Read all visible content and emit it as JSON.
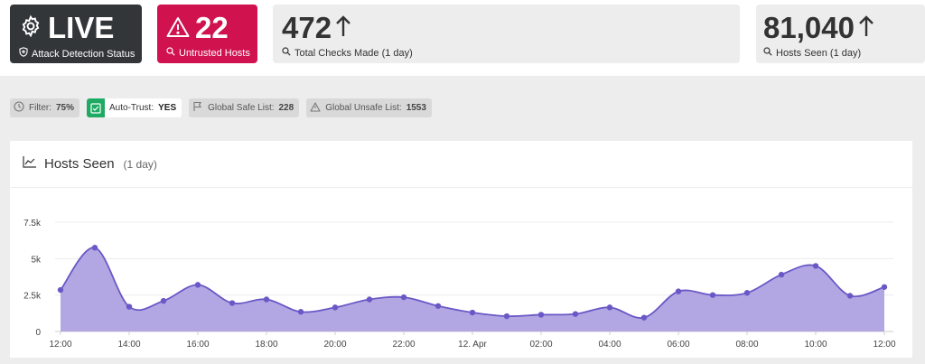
{
  "status": {
    "live_label": "LIVE",
    "live_sub": "Attack Detection Status",
    "untrusted_value": "22",
    "untrusted_sub": "Untrusted Hosts",
    "checks_value": "472",
    "checks_sub": "Total Checks Made (1 day)",
    "hosts_value": "81,040",
    "hosts_sub": "Hosts Seen (1 day)"
  },
  "chips": {
    "filter_label": "Filter:",
    "filter_value": "75%",
    "autotrust_label": "Auto-Trust:",
    "autotrust_value": "YES",
    "safe_label": "Global Safe List:",
    "safe_value": "228",
    "unsafe_label": "Global Unsafe List:",
    "unsafe_value": "1553"
  },
  "panel": {
    "title": "Hosts Seen",
    "range": "(1 day)"
  },
  "colors": {
    "live_bg": "#333639",
    "untrusted_bg": "#d0124f",
    "autotrust_green": "#1faa63",
    "series_fill": "#b3a7e3",
    "series_line": "#6a58c6"
  },
  "chart_data": {
    "type": "area",
    "title": "",
    "xlabel": "",
    "ylabel": "",
    "ylim": [
      0,
      7500
    ],
    "yticks": [
      0,
      2500,
      5000,
      7500
    ],
    "ytick_labels": [
      "0",
      "2.5k",
      "5k",
      "7.5k"
    ],
    "xtick_labels": [
      "12:00",
      "14:00",
      "16:00",
      "18:00",
      "20:00",
      "22:00",
      "12. Apr",
      "02:00",
      "04:00",
      "06:00",
      "08:00",
      "10:00",
      "12:00"
    ],
    "grid": true,
    "series": [
      {
        "values": [
          2850,
          5750,
          1700,
          2100,
          3200,
          1950,
          2200,
          1350,
          1650,
          2200,
          2350,
          1750,
          1300,
          1050,
          1150,
          1200,
          1650,
          950,
          2750,
          2500,
          2650,
          3900,
          4500,
          2450,
          3050
        ]
      }
    ]
  }
}
